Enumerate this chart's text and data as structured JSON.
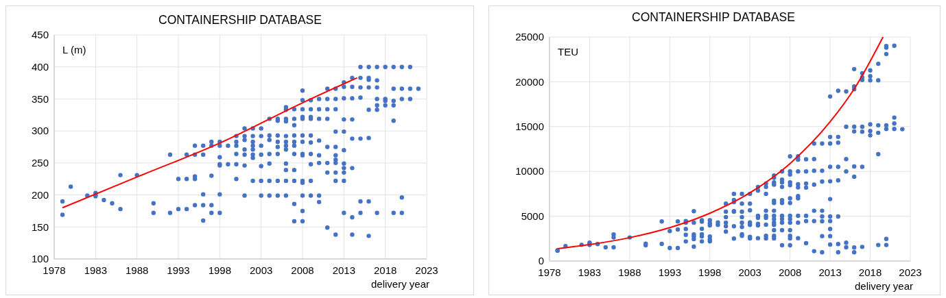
{
  "chart_data": [
    {
      "type": "scatter",
      "title": "CONTAINERSHIP DATABASE",
      "xlabel": "delivery year",
      "ylabel": "L (m)",
      "xlim": [
        1978,
        2023
      ],
      "xticks": [
        1978,
        1983,
        1988,
        1993,
        1998,
        2003,
        2008,
        2013,
        2018,
        2023
      ],
      "ylim": [
        100,
        450
      ],
      "yticks": [
        100,
        150,
        200,
        250,
        300,
        350,
        400,
        450
      ],
      "grid": true,
      "series": [
        {
          "marker": "circle",
          "color": "#4472c4",
          "x": [
            1979,
            1979,
            1980,
            1982,
            1983,
            1983,
            1983,
            1984,
            1985,
            1986,
            1986,
            1988,
            1990,
            1990,
            1992,
            1992,
            1993,
            1993,
            1994,
            1994,
            1994,
            1995,
            1995,
            1995,
            1995,
            1995,
            1996,
            1996,
            1996,
            1996,
            1996,
            1997,
            1997,
            1997,
            1997,
            1997,
            1998,
            1998,
            1998,
            1998,
            1998,
            1998,
            1998,
            1999,
            1999,
            2000,
            2000,
            2000,
            2000,
            2000,
            2000,
            2001,
            2001,
            2001,
            2001,
            2001,
            2001,
            2001,
            2002,
            2002,
            2002,
            2002,
            2002,
            2002,
            2002,
            2002,
            2003,
            2003,
            2003,
            2003,
            2003,
            2003,
            2003,
            2004,
            2004,
            2004,
            2004,
            2004,
            2004,
            2004,
            2005,
            2005,
            2005,
            2005,
            2005,
            2005,
            2005,
            2005,
            2006,
            2006,
            2006,
            2006,
            2006,
            2006,
            2006,
            2006,
            2006,
            2006,
            2006,
            2006,
            2007,
            2007,
            2007,
            2007,
            2007,
            2007,
            2007,
            2007,
            2007,
            2007,
            2007,
            2008,
            2008,
            2008,
            2008,
            2008,
            2008,
            2008,
            2008,
            2008,
            2008,
            2008,
            2008,
            2008,
            2008,
            2009,
            2009,
            2009,
            2009,
            2009,
            2009,
            2009,
            2009,
            2009,
            2009,
            2010,
            2010,
            2010,
            2010,
            2010,
            2010,
            2010,
            2010,
            2011,
            2011,
            2011,
            2011,
            2011,
            2011,
            2011,
            2011,
            2012,
            2012,
            2012,
            2012,
            2012,
            2012,
            2012,
            2012,
            2012,
            2012,
            2012,
            2013,
            2013,
            2013,
            2013,
            2013,
            2013,
            2013,
            2013,
            2013,
            2013,
            2013,
            2014,
            2014,
            2014,
            2014,
            2014,
            2014,
            2014,
            2014,
            2015,
            2015,
            2015,
            2015,
            2015,
            2015,
            2015,
            2016,
            2016,
            2016,
            2016,
            2016,
            2016,
            2016,
            2016,
            2017,
            2017,
            2017,
            2017,
            2017,
            2017,
            2017,
            2018,
            2018,
            2018,
            2018,
            2019,
            2019,
            2019,
            2019,
            2019,
            2019,
            2020,
            2020,
            2020,
            2020,
            2020,
            2021,
            2021,
            2021,
            2022
          ],
          "values": [
            190,
            169,
            213,
            199,
            203,
            200,
            198,
            192,
            187,
            231,
            178,
            231,
            187,
            172,
            263,
            172,
            225,
            178,
            263,
            225,
            178,
            277,
            263,
            229,
            225,
            184,
            277,
            263,
            201,
            184,
            160,
            283,
            277,
            230,
            184,
            172,
            283,
            277,
            259,
            248,
            246,
            201,
            172,
            277,
            248,
            292,
            283,
            277,
            264,
            248,
            225,
            304,
            292,
            286,
            271,
            263,
            246,
            199,
            304,
            292,
            283,
            277,
            271,
            263,
            258,
            222,
            304,
            292,
            277,
            263,
            245,
            222,
            199,
            319,
            293,
            286,
            264,
            249,
            222,
            199,
            319,
            316,
            293,
            283,
            275,
            264,
            222,
            199,
            337,
            333,
            319,
            315,
            292,
            283,
            277,
            271,
            249,
            239,
            222,
            199,
            334,
            319,
            309,
            293,
            283,
            277,
            264,
            239,
            222,
            186,
            159,
            363,
            348,
            334,
            322,
            319,
            293,
            283,
            264,
            262,
            222,
            219,
            199,
            175,
            159,
            348,
            334,
            322,
            319,
            293,
            282,
            264,
            248,
            222,
            199,
            350,
            334,
            319,
            285,
            262,
            250,
            199,
            189,
            366,
            350,
            334,
            319,
            275,
            250,
            235,
            149,
            366,
            350,
            334,
            299,
            275,
            262,
            255,
            250,
            235,
            222,
            138,
            376,
            369,
            351,
            318,
            299,
            270,
            249,
            242,
            235,
            222,
            172,
            383,
            369,
            351,
            318,
            288,
            242,
            165,
            138,
            400,
            383,
            368,
            352,
            288,
            190,
            172,
            400,
            383,
            380,
            368,
            333,
            289,
            190,
            136,
            400,
            379,
            368,
            350,
            340,
            333,
            172,
            400,
            350,
            347,
            340,
            400,
            366,
            347,
            340,
            316,
            172,
            400,
            366,
            350,
            196,
            172,
            400,
            366,
            350,
            366
          ]
        },
        {
          "type": "line",
          "marker": "none",
          "color": "#ff0000",
          "x": [
            1979,
            1988,
            1998,
            2008,
            2014.6
          ],
          "values": [
            180,
            228,
            281,
            344,
            383
          ]
        }
      ]
    },
    {
      "type": "scatter",
      "title": "CONTAINERSHIP DATABASE",
      "xlabel": "delivery year",
      "ylabel": "TEU",
      "xlim": [
        1978,
        2023
      ],
      "xticks": [
        1978,
        1983,
        1988,
        1993,
        1998,
        2003,
        2008,
        2013,
        2018,
        2023
      ],
      "ylim": [
        0,
        25000
      ],
      "yticks": [
        0,
        5000,
        10000,
        15000,
        20000,
        25000
      ],
      "grid": true,
      "series": [
        {
          "marker": "circle",
          "color": "#4472c4",
          "x": [
            1979,
            1979,
            1980,
            1982,
            1983,
            1983,
            1983,
            1984,
            1985,
            1986,
            1986,
            1986,
            1988,
            1990,
            1990,
            1992,
            1992,
            1993,
            1993,
            1994,
            1994,
            1994,
            1995,
            1995,
            1995,
            1995,
            1995,
            1996,
            1996,
            1996,
            1996,
            1996,
            1996,
            1997,
            1997,
            1997,
            1997,
            1997,
            1997,
            1998,
            1998,
            1998,
            1998,
            1998,
            1998,
            1999,
            1999,
            2000,
            2000,
            2000,
            2000,
            2000,
            2000,
            2001,
            2001,
            2001,
            2001,
            2001,
            2001,
            2001,
            2002,
            2002,
            2002,
            2002,
            2002,
            2002,
            2002,
            2002,
            2003,
            2003,
            2003,
            2003,
            2003,
            2003,
            2003,
            2004,
            2004,
            2004,
            2004,
            2004,
            2004,
            2004,
            2005,
            2005,
            2005,
            2005,
            2005,
            2005,
            2005,
            2005,
            2005,
            2006,
            2006,
            2006,
            2006,
            2006,
            2006,
            2006,
            2006,
            2006,
            2006,
            2006,
            2006,
            2006,
            2006,
            2007,
            2007,
            2007,
            2007,
            2007,
            2007,
            2007,
            2007,
            2007,
            2007,
            2007,
            2008,
            2008,
            2008,
            2008,
            2008,
            2008,
            2008,
            2008,
            2008,
            2008,
            2008,
            2008,
            2008,
            2008,
            2009,
            2009,
            2009,
            2009,
            2009,
            2009,
            2009,
            2009,
            2009,
            2009,
            2010,
            2010,
            2010,
            2010,
            2010,
            2010,
            2010,
            2011,
            2011,
            2011,
            2011,
            2011,
            2011,
            2011,
            2012,
            2012,
            2012,
            2012,
            2012,
            2012,
            2012,
            2012,
            2013,
            2013,
            2013,
            2013,
            2013,
            2013,
            2013,
            2013,
            2013,
            2013,
            2013,
            2014,
            2014,
            2014,
            2014,
            2014,
            2014,
            2014,
            2014,
            2015,
            2015,
            2015,
            2015,
            2015,
            2015,
            2016,
            2016,
            2016,
            2016,
            2016,
            2016,
            2016,
            2016,
            2016,
            2017,
            2017,
            2017,
            2017,
            2017,
            2017,
            2017,
            2018,
            2018,
            2018,
            2018,
            2018,
            2018,
            2019,
            2019,
            2019,
            2019,
            2019,
            2019,
            2020,
            2020,
            2020,
            2020,
            2020,
            2020,
            2020,
            2021,
            2021,
            2021,
            2021,
            2022
          ],
          "values": [
            1150,
            1200,
            1660,
            1810,
            2040,
            1940,
            1790,
            1890,
            1530,
            2960,
            2630,
            1530,
            2630,
            1940,
            1760,
            4410,
            1910,
            3340,
            1450,
            4410,
            3520,
            1450,
            4460,
            4280,
            3570,
            2930,
            2190,
            5560,
            4280,
            2960,
            2730,
            2450,
            1610,
            4560,
            4390,
            3600,
            2980,
            2750,
            2190,
            4560,
            4230,
            3980,
            2730,
            2400,
            2190,
            4310,
            4030,
            6400,
            5510,
            4900,
            4280,
            3880,
            3290,
            7500,
            6810,
            6580,
            5560,
            5510,
            3880,
            2500,
            7500,
            6400,
            5510,
            4900,
            4280,
            3800,
            2980,
            2810,
            7500,
            6400,
            5660,
            4310,
            4030,
            2700,
            2530,
            8270,
            7860,
            5050,
            4820,
            4160,
            3980,
            2550,
            8650,
            8270,
            7500,
            5610,
            5050,
            4820,
            4060,
            2810,
            2530,
            9540,
            9280,
            8770,
            8520,
            6730,
            6480,
            5610,
            5050,
            4690,
            4280,
            4030,
            3440,
            2810,
            2530,
            10000,
            9080,
            8770,
            8270,
            6780,
            6480,
            5050,
            4690,
            4280,
            3440,
            1760,
            11680,
            10000,
            9660,
            8770,
            8470,
            6990,
            6480,
            5050,
            4690,
            4280,
            3440,
            2810,
            2530,
            1760,
            11680,
            11320,
            10000,
            8570,
            8210,
            7240,
            6990,
            5050,
            4280,
            2550,
            11350,
            10000,
            8650,
            8190,
            5050,
            4460,
            1990,
            13110,
            11370,
            10070,
            8520,
            5610,
            4460,
            1100,
            13110,
            10070,
            8870,
            5610,
            4970,
            4440,
            2780,
            970,
            18360,
            13850,
            13110,
            10510,
            8900,
            6910,
            4970,
            4460,
            3570,
            2780,
            1840,
            19000,
            13850,
            13210,
            10510,
            9000,
            4970,
            1890,
            970,
            18920,
            14990,
            11370,
            10000,
            2040,
            1530,
            21420,
            19480,
            19170,
            14990,
            14460,
            10560,
            9410,
            1510,
            970,
            20960,
            20500,
            20200,
            14990,
            14430,
            10510,
            1580,
            21270,
            20630,
            20170,
            15250,
            14510,
            14030,
            22010,
            20170,
            15150,
            14310,
            11930,
            1790,
            24000,
            23820,
            23100,
            15150,
            14740,
            2470,
            1790,
            24020,
            16010,
            15350,
            14740,
            14710
          ]
        },
        {
          "type": "line",
          "marker": "none",
          "color": "#ff0000",
          "x": [
            1979,
            1983,
            1988,
            1993,
            1998,
            2003,
            2008,
            2013,
            2016,
            2019.6
          ],
          "values": [
            1380,
            1830,
            2610,
            3730,
            5330,
            7610,
            10880,
            15540,
            19210,
            25000
          ]
        }
      ]
    }
  ]
}
